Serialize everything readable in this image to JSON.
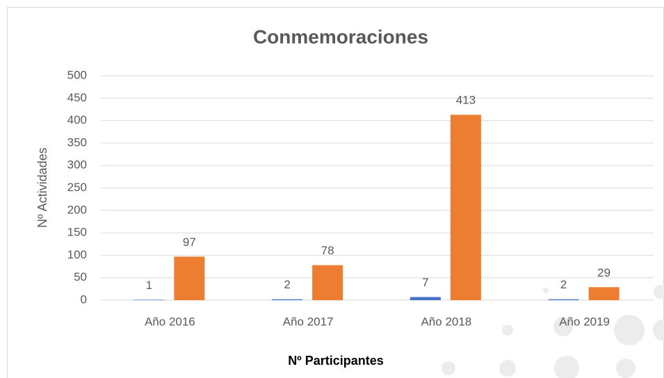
{
  "chart_data": {
    "type": "bar",
    "title": "Conmemoraciones",
    "x_label": "Nº Participantes",
    "y_label": "Nº Actividades",
    "categories": [
      "Año 2016",
      "Año 2017",
      "Año 2018",
      "Año 2019"
    ],
    "series": [
      {
        "color": "#4472c4",
        "values": [
          1,
          2,
          7,
          2
        ]
      },
      {
        "color": "#ed7d31",
        "values": [
          97,
          78,
          413,
          29
        ]
      }
    ],
    "ylim": [
      0,
      500
    ],
    "yticks": [
      0,
      50,
      100,
      150,
      200,
      250,
      300,
      350,
      400,
      450,
      500
    ],
    "grid": true
  }
}
